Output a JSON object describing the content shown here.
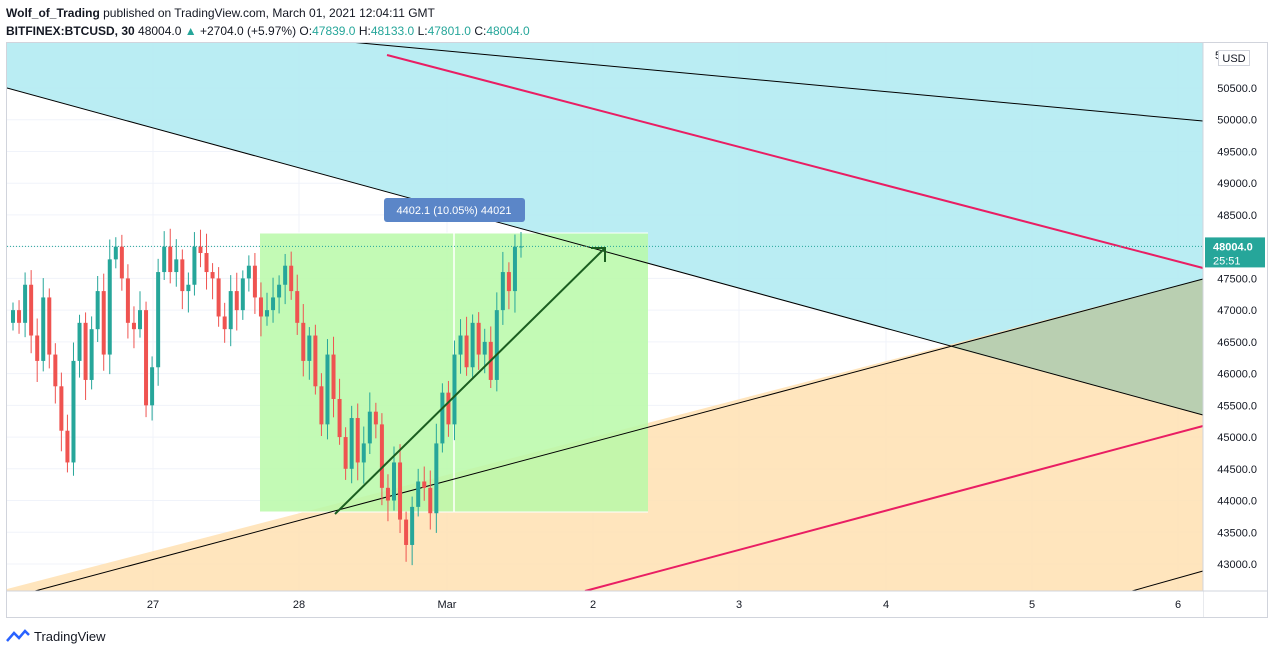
{
  "header": {
    "author": "Wolf_of_Trading",
    "published_text": "published on TradingView.com, March 01, 2021 12:04:11 GMT",
    "symbol": "BITFINEX:BTCUSD, 30",
    "last": "48004.0",
    "change": "+2704.0 (+5.97%)",
    "open_label": "O:",
    "open": "47839.0",
    "high_label": "H:",
    "high": "48133.0",
    "low_label": "L:",
    "low": "47801.0",
    "close_label": "C:",
    "close": "48004.0"
  },
  "currency_badge": "USD",
  "price_badge": {
    "price": "48004.0",
    "countdown": "25:51",
    "color": "#26a69a"
  },
  "measure_label": "4402.1 (10.05%) 44021",
  "footer": {
    "brand": "TradingView"
  },
  "colors": {
    "up": "#26a69a",
    "down": "#ef5350",
    "channel_upper": "#b2ebf2",
    "channel_lower": "#ffe0b2",
    "midline": "#e91e63",
    "measure": "#b9f9a8",
    "measure_label_bg": "#5b86c8"
  },
  "chart_data": {
    "type": "candlestick",
    "title": "BITFINEX:BTCUSD, 30",
    "x_tick_labels": [
      "27",
      "28",
      "Mar",
      "2",
      "3",
      "4",
      "5",
      "6"
    ],
    "y_tick_labels": [
      "50500.0",
      "50000.0",
      "49500.0",
      "49000.0",
      "48500.0",
      "48000.0",
      "47500.0",
      "47000.0",
      "46500.0",
      "46000.0",
      "45500.0",
      "45000.0",
      "44500.0",
      "44000.0",
      "43500.0",
      "43000.0"
    ],
    "ylim": [
      42600,
      51100
    ],
    "last_price": 48004.0,
    "price_path": [
      47000,
      46800,
      47400,
      46600,
      46200,
      47200,
      46300,
      45800,
      45100,
      44600,
      46200,
      46800,
      45900,
      46700,
      47300,
      46300,
      47800,
      48000,
      47500,
      46800,
      46700,
      47000,
      45500,
      46100,
      47600,
      48000,
      47600,
      47800,
      47300,
      47400,
      48000,
      47900,
      47600,
      47500,
      46900,
      46700,
      47300,
      47000,
      47500,
      47700,
      47200,
      46900,
      47000,
      47200,
      47400,
      47700,
      47300,
      46800,
      46200,
      46600,
      45800,
      45200,
      46300,
      45600,
      45000,
      44500,
      45300,
      44600,
      44900,
      45400,
      45200,
      44200,
      44000,
      44600,
      43700,
      43300,
      43900,
      44300,
      44200,
      43800,
      44900,
      45700,
      45200,
      46300,
      46600,
      46100,
      46800,
      46300,
      46500,
      45900,
      47000,
      47600,
      47300,
      48000,
      48004
    ],
    "drawings": [
      {
        "type": "channel-upper-bound",
        "points": [
          [
            "26",
            50500
          ],
          [
            "6",
            45300
          ]
        ]
      },
      {
        "type": "channel-midline",
        "points": [
          [
            "27",
            51500
          ],
          [
            "6",
            47600
          ]
        ]
      },
      {
        "type": "channel-lower-bound",
        "points": [
          [
            "26",
            42600
          ],
          [
            "6",
            47500
          ]
        ]
      },
      {
        "type": "channel-lower-midline",
        "points": [
          [
            "1.7",
            42600
          ],
          [
            "6",
            45200
          ]
        ]
      },
      {
        "type": "measure-range",
        "from": 43800,
        "to": 48200,
        "label": "4402.1 (10.05%) 44021"
      },
      {
        "type": "arrow",
        "from": [
          "28.3",
          43800
        ],
        "to": [
          "2.1",
          47950
        ]
      }
    ]
  }
}
